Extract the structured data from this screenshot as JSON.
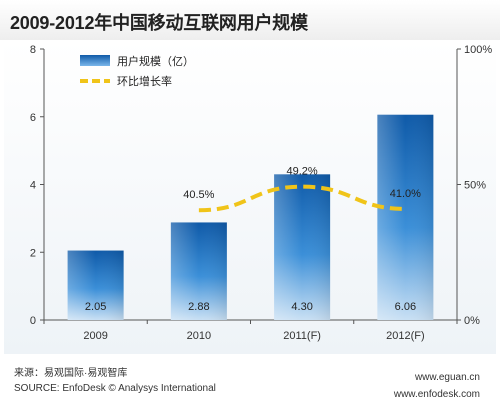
{
  "title": "2009-2012年中国移动互联网用户规模",
  "chart_data": {
    "type": "bar",
    "categories": [
      "2009",
      "2010",
      "2011(F)",
      "2012(F)"
    ],
    "series": [
      {
        "name": "用户规模（亿）",
        "type": "bar",
        "axis": "left",
        "values": [
          2.05,
          2.88,
          4.3,
          6.06
        ],
        "color": "#1a73c6"
      },
      {
        "name": "环比增长率",
        "type": "line",
        "axis": "right",
        "values": [
          null,
          40.5,
          49.2,
          41.0
        ],
        "color": "#f0c419",
        "style": "dashed"
      }
    ],
    "bar_labels": [
      "2.05",
      "2.88",
      "4.30",
      "6.06"
    ],
    "rate_labels": [
      "",
      "40.5%",
      "49.2%",
      "41.0%"
    ],
    "ylim": [
      0,
      8
    ],
    "y_ticks": [
      "0",
      "2",
      "4",
      "6",
      "8"
    ],
    "y2lim": [
      0,
      100
    ],
    "y2_ticks": [
      "0%",
      "50%",
      "100%"
    ],
    "legend_position": "top-left",
    "grid": false
  },
  "footer": {
    "source_cn": "来源：易观国际·易观智库",
    "source_en": "SOURCE: EnfoDesk © Analysys International",
    "url1": "www.eguan.cn",
    "url2": "www.enfodesk.com"
  }
}
